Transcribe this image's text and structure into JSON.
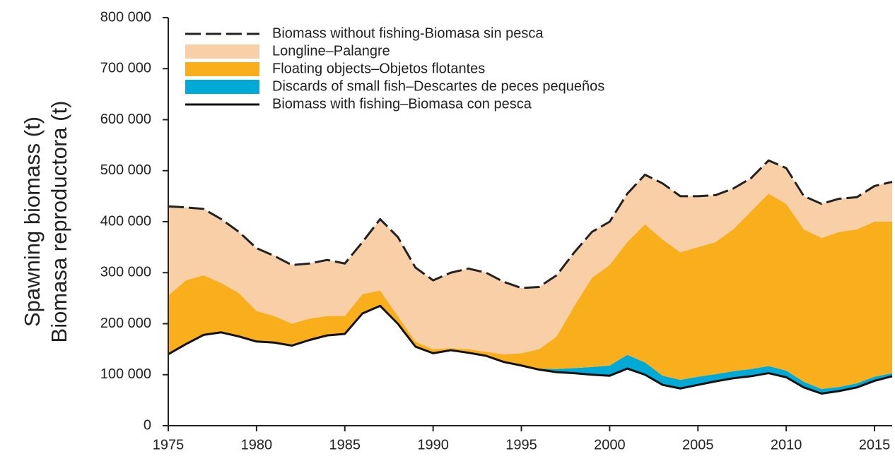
{
  "chart_data": {
    "type": "stacked-area",
    "y_label_lines": [
      "Spawning biomass (t)",
      "Biomasa reproductora (t)"
    ],
    "x": [
      1975,
      1976,
      1977,
      1978,
      1979,
      1980,
      1981,
      1982,
      1983,
      1984,
      1985,
      1986,
      1987,
      1988,
      1989,
      1990,
      1991,
      1992,
      1993,
      1994,
      1995,
      1996,
      1997,
      1998,
      1999,
      2000,
      2001,
      2002,
      2003,
      2004,
      2005,
      2006,
      2007,
      2008,
      2009,
      2010,
      2011,
      2012,
      2013,
      2014,
      2015,
      2016
    ],
    "series": [
      {
        "name": "Biomass without fishing-Biomasa sin pesca",
        "kind": "line",
        "dashed": true,
        "color": "#222222",
        "values": [
          430000,
          428000,
          425000,
          405000,
          380000,
          348000,
          333000,
          315000,
          318000,
          325000,
          318000,
          360000,
          405000,
          370000,
          310000,
          285000,
          300000,
          308000,
          300000,
          282000,
          270000,
          272000,
          295000,
          340000,
          380000,
          400000,
          455000,
          492000,
          475000,
          450000,
          450000,
          452000,
          465000,
          485000,
          520000,
          505000,
          450000,
          435000,
          445000,
          448000,
          470000,
          478000
        ]
      },
      {
        "name": "Longline–Palangre",
        "kind": "area",
        "stack_order": 3,
        "color": "#f9cfa8",
        "values": [
          175000,
          143000,
          130000,
          125000,
          120000,
          123000,
          118000,
          115000,
          108000,
          110000,
          103000,
          102000,
          140000,
          155000,
          145000,
          135000,
          148000,
          158000,
          155000,
          142000,
          128000,
          122000,
          120000,
          105000,
          90000,
          85000,
          95000,
          97000,
          110000,
          110000,
          100000,
          92000,
          80000,
          65000,
          65000,
          70000,
          65000,
          67000,
          65000,
          63000,
          70000,
          78000
        ]
      },
      {
        "name": "Floating objects–Objetos flotantes",
        "kind": "area",
        "stack_order": 2,
        "color": "#f9ae1b",
        "values": [
          115000,
          125000,
          117000,
          97000,
          85000,
          60000,
          52000,
          43000,
          42000,
          38000,
          35000,
          38000,
          30000,
          15000,
          10000,
          8000,
          4000,
          7000,
          8000,
          15000,
          24000,
          38000,
          64000,
          122000,
          175000,
          197000,
          221000,
          271000,
          267000,
          250000,
          254000,
          259000,
          278000,
          309000,
          338000,
          327000,
          299000,
          296000,
          304000,
          302000,
          304000,
          297000
        ]
      },
      {
        "name": "Discards of small fish–Descartes de peces pequeños",
        "kind": "area",
        "stack_order": 1,
        "color": "#00a9d6",
        "values": [
          0,
          0,
          0,
          0,
          0,
          0,
          0,
          0,
          0,
          0,
          0,
          0,
          0,
          0,
          0,
          0,
          0,
          0,
          0,
          0,
          0,
          2000,
          6000,
          10000,
          15000,
          20000,
          27000,
          24000,
          18000,
          17000,
          16000,
          14000,
          14000,
          14000,
          14000,
          13000,
          11000,
          9000,
          8000,
          8000,
          8000,
          6000
        ]
      },
      {
        "name": "Biomass with fishing–Biomasa con pesca",
        "kind": "line",
        "dashed": false,
        "stack_base": true,
        "color": "#111111",
        "values": [
          140000,
          160000,
          178000,
          183000,
          175000,
          165000,
          163000,
          157000,
          168000,
          177000,
          180000,
          220000,
          235000,
          200000,
          155000,
          142000,
          148000,
          143000,
          137000,
          125000,
          118000,
          110000,
          105000,
          103000,
          100000,
          98000,
          112000,
          100000,
          80000,
          73000,
          80000,
          87000,
          93000,
          97000,
          103000,
          95000,
          75000,
          63000,
          68000,
          75000,
          88000,
          97000
        ]
      }
    ],
    "xlim": [
      1975,
      2016
    ],
    "xticks": [
      1975,
      1980,
      1985,
      1990,
      1995,
      2000,
      2005,
      2010,
      2015
    ],
    "ylim": [
      0,
      800000
    ],
    "yticks": [
      0,
      {
        "value": 100000,
        "label": "100 000"
      },
      {
        "value": 200000,
        "label": "200 000"
      },
      {
        "value": 300000,
        "label": "300 000"
      },
      {
        "value": 400000,
        "label": "400 000"
      },
      {
        "value": 500000,
        "label": "500 000"
      },
      {
        "value": 600000,
        "label": "600 000"
      },
      {
        "value": 700000,
        "label": "700 000"
      },
      {
        "value": 800000,
        "label": "800 000"
      }
    ],
    "legend": "upper left",
    "grid": false
  }
}
